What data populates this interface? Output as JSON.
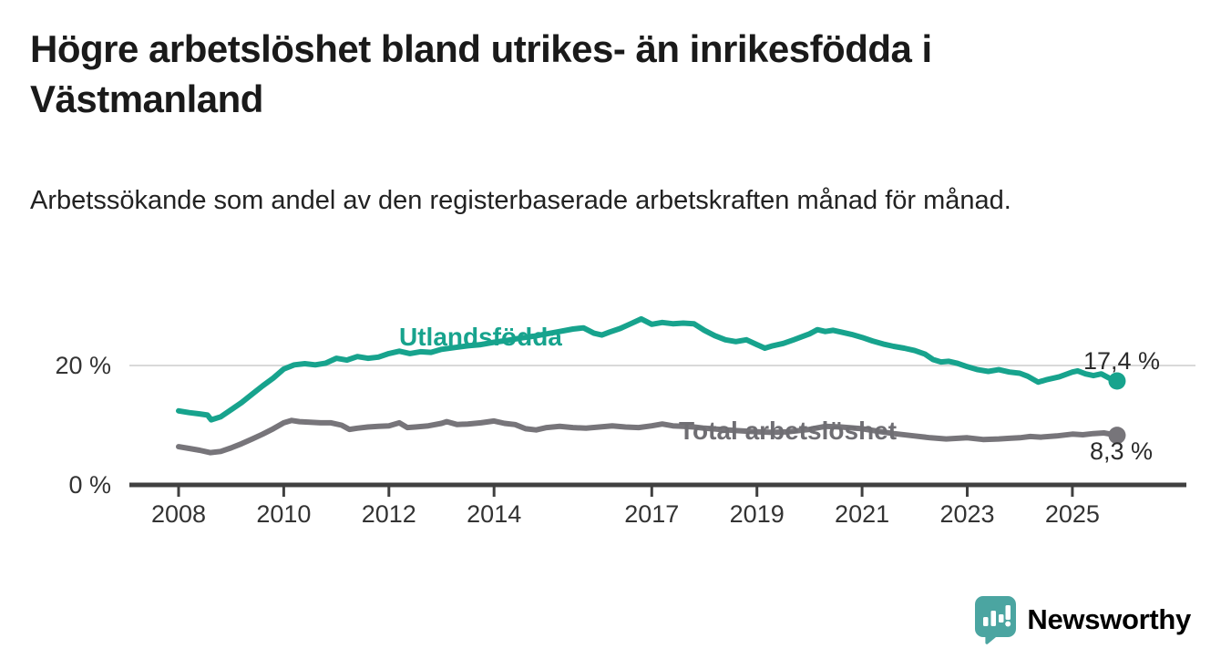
{
  "header": {
    "title": "Högre arbetslöshet bland utrikes- än inrikesfödda i Västmanland",
    "subtitle": "Arbetssökande som andel av den registerbaserade arbetskraften månad för månad."
  },
  "branding": {
    "logo_text": "Newsworthy",
    "logo_color": "#4BA5A1",
    "logo_icon": "bar-chart-speech-bubble-icon"
  },
  "colors": {
    "foreign_born_line": "#17A38D",
    "total_line": "#77757A",
    "total_label": "#6F6E73",
    "axis": "#404040",
    "gridline": "#D9D9D9",
    "value_label": "#2B2B2B"
  },
  "chart_data": {
    "type": "line",
    "title": "Högre arbetslöshet bland utrikes- än inrikesfödda i Västmanland",
    "subtitle": "Arbetssökande som andel av den registerbaserade arbetskraften månad för månad.",
    "xlabel": "",
    "ylabel": "",
    "grid": "single horizontal gridline at 20 %",
    "legend_position": "inline labels on lines",
    "x_axis": {
      "ticks": [
        "2008",
        "2010",
        "2012",
        "2014",
        "2017",
        "2019",
        "2021",
        "2023",
        "2025"
      ],
      "tick_years": [
        2008,
        2010,
        2012,
        2014,
        2017,
        2019,
        2021,
        2023,
        2025
      ],
      "range": [
        2007.1,
        2026.4
      ]
    },
    "y_axis": {
      "ticks": [
        {
          "value": 0,
          "label": "0 %"
        },
        {
          "value": 20,
          "label": "20 %"
        }
      ],
      "range": [
        0,
        30
      ],
      "gridlines": [
        20
      ]
    },
    "series": [
      {
        "name": "Utlandsfödda",
        "color": "#17A38D",
        "end_label": "17,4 %",
        "end_value": 17.4,
        "points": [
          [
            2008.0,
            12.4
          ],
          [
            2008.2,
            12.1
          ],
          [
            2008.4,
            11.9
          ],
          [
            2008.55,
            11.7
          ],
          [
            2008.62,
            10.9
          ],
          [
            2008.8,
            11.4
          ],
          [
            2009.0,
            12.6
          ],
          [
            2009.2,
            13.8
          ],
          [
            2009.4,
            15.2
          ],
          [
            2009.6,
            16.6
          ],
          [
            2009.8,
            17.9
          ],
          [
            2010.0,
            19.4
          ],
          [
            2010.2,
            20.1
          ],
          [
            2010.4,
            20.3
          ],
          [
            2010.6,
            20.1
          ],
          [
            2010.8,
            20.4
          ],
          [
            2011.0,
            21.2
          ],
          [
            2011.2,
            20.9
          ],
          [
            2011.4,
            21.5
          ],
          [
            2011.6,
            21.2
          ],
          [
            2011.8,
            21.4
          ],
          [
            2012.0,
            22.0
          ],
          [
            2012.2,
            22.4
          ],
          [
            2012.4,
            22.0
          ],
          [
            2012.6,
            22.3
          ],
          [
            2012.8,
            22.2
          ],
          [
            2013.0,
            22.7
          ],
          [
            2013.25,
            23.0
          ],
          [
            2013.5,
            23.3
          ],
          [
            2013.75,
            23.5
          ],
          [
            2014.0,
            23.9
          ],
          [
            2014.25,
            24.2
          ],
          [
            2014.5,
            24.6
          ],
          [
            2014.75,
            24.9
          ],
          [
            2015.0,
            25.3
          ],
          [
            2015.25,
            25.7
          ],
          [
            2015.5,
            26.1
          ],
          [
            2015.7,
            26.3
          ],
          [
            2015.9,
            25.4
          ],
          [
            2016.05,
            25.1
          ],
          [
            2016.2,
            25.6
          ],
          [
            2016.4,
            26.2
          ],
          [
            2016.6,
            27.0
          ],
          [
            2016.8,
            27.8
          ],
          [
            2017.0,
            26.9
          ],
          [
            2017.2,
            27.2
          ],
          [
            2017.4,
            27.0
          ],
          [
            2017.6,
            27.1
          ],
          [
            2017.8,
            27.0
          ],
          [
            2018.0,
            25.9
          ],
          [
            2018.2,
            25.0
          ],
          [
            2018.4,
            24.3
          ],
          [
            2018.6,
            24.0
          ],
          [
            2018.8,
            24.3
          ],
          [
            2019.0,
            23.5
          ],
          [
            2019.15,
            22.9
          ],
          [
            2019.3,
            23.3
          ],
          [
            2019.5,
            23.7
          ],
          [
            2019.7,
            24.3
          ],
          [
            2019.85,
            24.8
          ],
          [
            2020.0,
            25.3
          ],
          [
            2020.15,
            26.0
          ],
          [
            2020.3,
            25.7
          ],
          [
            2020.45,
            25.9
          ],
          [
            2020.6,
            25.6
          ],
          [
            2020.8,
            25.2
          ],
          [
            2021.0,
            24.7
          ],
          [
            2021.2,
            24.1
          ],
          [
            2021.4,
            23.6
          ],
          [
            2021.6,
            23.2
          ],
          [
            2021.8,
            22.9
          ],
          [
            2022.0,
            22.5
          ],
          [
            2022.2,
            21.9
          ],
          [
            2022.35,
            21.0
          ],
          [
            2022.5,
            20.6
          ],
          [
            2022.65,
            20.7
          ],
          [
            2022.8,
            20.4
          ],
          [
            2023.0,
            19.8
          ],
          [
            2023.2,
            19.3
          ],
          [
            2023.4,
            19.0
          ],
          [
            2023.6,
            19.3
          ],
          [
            2023.8,
            18.9
          ],
          [
            2024.0,
            18.7
          ],
          [
            2024.15,
            18.2
          ],
          [
            2024.35,
            17.2
          ],
          [
            2024.5,
            17.6
          ],
          [
            2024.75,
            18.1
          ],
          [
            2025.0,
            18.9
          ],
          [
            2025.1,
            19.1
          ],
          [
            2025.25,
            18.6
          ],
          [
            2025.4,
            18.3
          ],
          [
            2025.55,
            18.6
          ],
          [
            2025.7,
            17.9
          ],
          [
            2025.85,
            17.4
          ]
        ]
      },
      {
        "name": "Total arbetslöshet",
        "color": "#77757A",
        "end_label": "8,3 %",
        "end_value": 8.3,
        "points": [
          [
            2008.0,
            6.4
          ],
          [
            2008.2,
            6.1
          ],
          [
            2008.4,
            5.8
          ],
          [
            2008.6,
            5.4
          ],
          [
            2008.8,
            5.6
          ],
          [
            2009.0,
            6.2
          ],
          [
            2009.2,
            6.9
          ],
          [
            2009.4,
            7.7
          ],
          [
            2009.6,
            8.5
          ],
          [
            2009.8,
            9.4
          ],
          [
            2010.0,
            10.4
          ],
          [
            2010.15,
            10.8
          ],
          [
            2010.3,
            10.6
          ],
          [
            2010.5,
            10.5
          ],
          [
            2010.7,
            10.4
          ],
          [
            2010.9,
            10.4
          ],
          [
            2011.1,
            10.0
          ],
          [
            2011.25,
            9.3
          ],
          [
            2011.4,
            9.5
          ],
          [
            2011.6,
            9.7
          ],
          [
            2011.8,
            9.8
          ],
          [
            2012.0,
            9.9
          ],
          [
            2012.2,
            10.4
          ],
          [
            2012.35,
            9.6
          ],
          [
            2012.5,
            9.7
          ],
          [
            2012.75,
            9.9
          ],
          [
            2013.0,
            10.3
          ],
          [
            2013.1,
            10.6
          ],
          [
            2013.3,
            10.1
          ],
          [
            2013.5,
            10.2
          ],
          [
            2013.75,
            10.4
          ],
          [
            2014.0,
            10.7
          ],
          [
            2014.2,
            10.3
          ],
          [
            2014.4,
            10.1
          ],
          [
            2014.6,
            9.4
          ],
          [
            2014.8,
            9.2
          ],
          [
            2015.0,
            9.6
          ],
          [
            2015.25,
            9.8
          ],
          [
            2015.5,
            9.6
          ],
          [
            2015.75,
            9.5
          ],
          [
            2016.0,
            9.7
          ],
          [
            2016.25,
            9.9
          ],
          [
            2016.5,
            9.7
          ],
          [
            2016.75,
            9.6
          ],
          [
            2017.0,
            9.9
          ],
          [
            2017.2,
            10.2
          ],
          [
            2017.4,
            9.9
          ],
          [
            2017.6,
            9.8
          ],
          [
            2017.8,
            9.7
          ],
          [
            2018.0,
            9.5
          ],
          [
            2018.3,
            9.3
          ],
          [
            2018.6,
            9.1
          ],
          [
            2019.0,
            8.9
          ],
          [
            2019.3,
            8.8
          ],
          [
            2019.6,
            8.9
          ],
          [
            2020.0,
            9.3
          ],
          [
            2020.3,
            9.8
          ],
          [
            2020.6,
            9.7
          ],
          [
            2021.0,
            9.4
          ],
          [
            2021.3,
            9.0
          ],
          [
            2021.6,
            8.6
          ],
          [
            2022.0,
            8.2
          ],
          [
            2022.3,
            7.9
          ],
          [
            2022.6,
            7.7
          ],
          [
            2023.0,
            7.9
          ],
          [
            2023.3,
            7.6
          ],
          [
            2023.6,
            7.7
          ],
          [
            2023.8,
            7.8
          ],
          [
            2024.0,
            7.9
          ],
          [
            2024.2,
            8.1
          ],
          [
            2024.4,
            8.0
          ],
          [
            2024.7,
            8.2
          ],
          [
            2025.0,
            8.5
          ],
          [
            2025.2,
            8.4
          ],
          [
            2025.4,
            8.6
          ],
          [
            2025.6,
            8.7
          ],
          [
            2025.85,
            8.3
          ]
        ]
      }
    ]
  }
}
